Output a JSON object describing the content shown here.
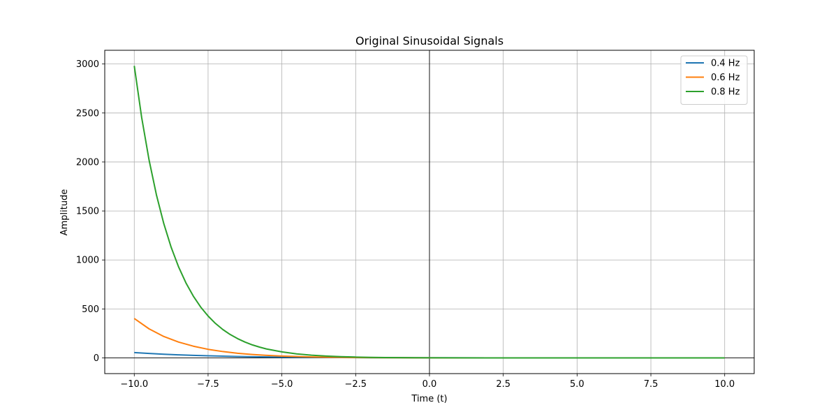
{
  "chart_data": {
    "type": "line",
    "title": "Original Sinusoidal Signals",
    "xlabel": "Time (t)",
    "ylabel": "Amplitude",
    "xlim": [
      -11,
      11
    ],
    "ylim": [
      -160,
      3140
    ],
    "grid": true,
    "legend_position": "top-right",
    "reference_lines": {
      "horizontal_at_y": 0,
      "vertical_at_x": 0,
      "color": "#000000"
    },
    "x_ticks": [
      -10.0,
      -7.5,
      -5.0,
      -2.5,
      0.0,
      2.5,
      5.0,
      7.5,
      10.0
    ],
    "x_tick_labels": [
      "−10.0",
      "−7.5",
      "−5.0",
      "−2.5",
      "0.0",
      "2.5",
      "5.0",
      "7.5",
      "10.0"
    ],
    "y_ticks": [
      0,
      500,
      1000,
      1500,
      2000,
      2500,
      3000
    ],
    "y_tick_labels": [
      "0",
      "500",
      "1000",
      "1500",
      "2000",
      "2500",
      "3000"
    ],
    "series": [
      {
        "name": "0.4 Hz",
        "color": "#1f77b4",
        "x": [
          -10,
          -9.5,
          -9,
          -8.5,
          -8,
          -7.5,
          -7,
          -6.5,
          -6,
          -5.5,
          -5,
          -4.5,
          -4,
          -3.5,
          -3,
          -2.5,
          -2,
          -1.5,
          -1,
          -0.5,
          0,
          2,
          4,
          6,
          8,
          10
        ],
        "y": [
          55,
          45.5,
          37.8,
          31.4,
          26.0,
          21.5,
          17.8,
          14.8,
          12.2,
          10.1,
          8.4,
          6.9,
          5.7,
          4.7,
          3.9,
          3.2,
          2.6,
          2.2,
          1.8,
          1.4,
          1.2,
          0.5,
          0.2,
          0.1,
          0.05,
          0.02
        ]
      },
      {
        "name": "0.6 Hz",
        "color": "#ff7f0e",
        "x": [
          -10,
          -9.5,
          -9,
          -8.5,
          -8,
          -7.5,
          -7,
          -6.5,
          -6,
          -5.5,
          -5,
          -4.5,
          -4,
          -3.5,
          -3,
          -2.5,
          -2,
          -1.5,
          -1,
          -0.5,
          0,
          2,
          4,
          6,
          8,
          10
        ],
        "y": [
          403,
          297,
          219,
          162,
          120,
          88,
          65,
          48,
          35.5,
          26.2,
          19.3,
          14.3,
          10.5,
          7.8,
          5.7,
          4.2,
          3.1,
          2.3,
          1.7,
          1.3,
          0.9,
          0.3,
          0.1,
          0.03,
          0.01,
          0
        ]
      },
      {
        "name": "0.8 Hz",
        "color": "#2ca02c",
        "x": [
          -10,
          -9.75,
          -9.5,
          -9.25,
          -9,
          -8.75,
          -8.5,
          -8.25,
          -8,
          -7.75,
          -7.5,
          -7.25,
          -7,
          -6.75,
          -6.5,
          -6.25,
          -6,
          -5.75,
          -5.5,
          -5,
          -4.5,
          -4,
          -3.5,
          -3,
          -2.5,
          -2,
          -1.5,
          -1,
          -0.5,
          0,
          2,
          4,
          6,
          8,
          10
        ],
        "y": [
          2981,
          2455,
          2022,
          1665,
          1371,
          1129,
          930,
          766,
          631,
          519,
          428,
          352,
          290,
          239,
          197,
          162,
          133,
          110,
          90,
          61.5,
          41.7,
          28.2,
          19.1,
          12.9,
          8.8,
          5.9,
          4.0,
          2.7,
          1.8,
          1.2,
          0.4,
          0.1,
          0.03,
          0.01,
          0
        ]
      }
    ]
  }
}
